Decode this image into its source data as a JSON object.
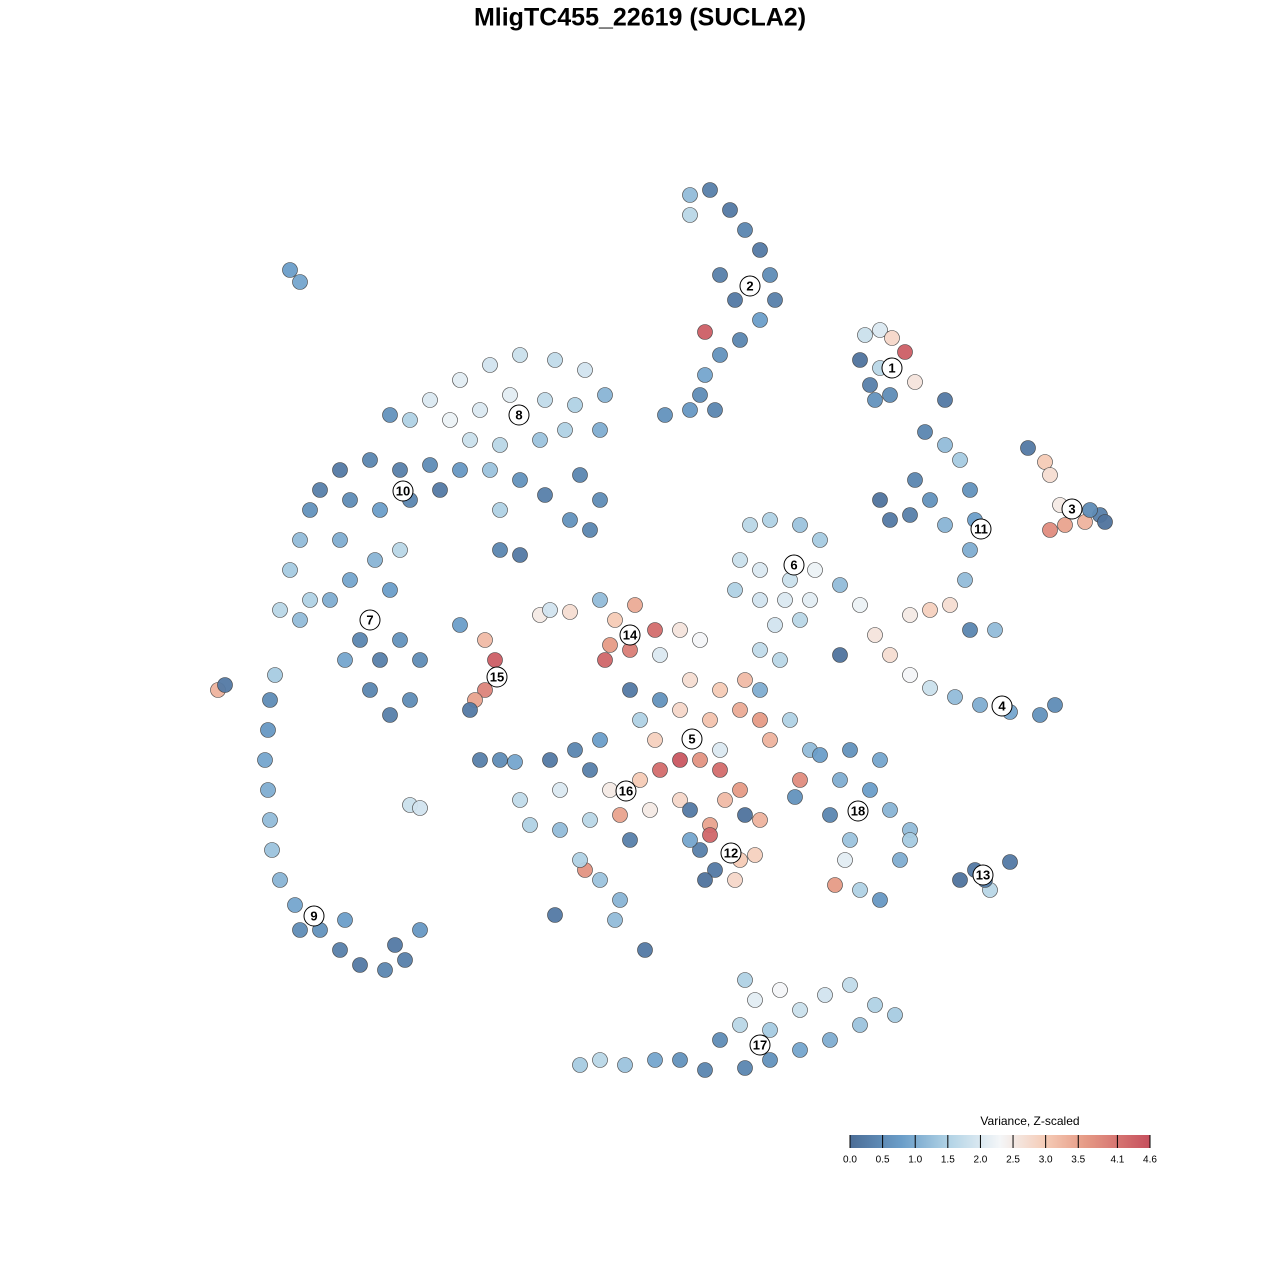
{
  "chart_data": {
    "type": "scatter",
    "title": "MligTC455_22619 (SUCLA2)",
    "xlim": [
      -45,
      50
    ],
    "ylim": [
      -46,
      47
    ],
    "x": [
      5,
      7,
      9,
      10.5,
      12,
      13,
      13.5,
      12,
      10,
      8,
      6.5,
      6,
      5,
      2.5,
      7.5,
      6.5,
      5,
      8,
      9.5,
      22.5,
      24,
      25.2,
      26.5,
      22,
      23,
      25,
      27.5,
      23.5,
      30.5,
      24,
      38.8,
      40.5,
      41,
      42,
      41,
      42.5,
      44.5,
      46,
      46.5,
      45,
      28.5,
      30.5,
      32,
      33,
      33.5,
      33,
      32.5,
      31,
      29,
      27,
      24,
      25,
      27,
      29,
      30.5,
      33,
      35.5,
      27.5,
      22,
      23.5,
      25,
      27,
      29,
      31.5,
      34,
      37,
      40,
      41.5,
      20,
      11,
      13,
      16,
      18,
      10,
      12,
      15,
      17.5,
      9.5,
      12,
      14.5,
      17,
      20,
      13.5,
      16,
      12,
      14,
      -21,
      -18,
      -15,
      -12,
      -8.5,
      -5.5,
      -3.5,
      -19,
      -16,
      -13,
      -9.5,
      -6.5,
      -4,
      -17,
      -14,
      -10,
      -7.5,
      -23,
      -25,
      -30,
      -27,
      -24,
      -21,
      -18,
      -15,
      -12,
      -9.5,
      -6,
      -4,
      -5,
      -7,
      -32,
      -33,
      -29,
      -26,
      -23,
      -20,
      -14,
      -14,
      -12,
      -34,
      -35,
      -36,
      -34,
      -31,
      -29,
      -26.5,
      -24,
      -25,
      -30,
      -28,
      -26,
      -24,
      -22,
      -27,
      -25,
      -23,
      -29.5,
      -33,
      -36.5,
      -37,
      -37.2,
      -37.5,
      -37.2,
      -37,
      -36.8,
      -36,
      -34.5,
      -32,
      -30,
      -28,
      -25.5,
      -23.5,
      -22,
      -29.5,
      -34,
      -24.5,
      -18,
      -15.5,
      -14.5,
      -15.5,
      -16.5,
      -17,
      -10,
      -7,
      -4,
      -2.5,
      -0.5,
      1.5,
      -3,
      -1,
      -3.5,
      4,
      6,
      2,
      -9,
      5,
      8,
      10.5,
      2,
      4,
      7,
      10,
      12,
      13,
      8,
      6,
      4,
      8,
      0,
      -1,
      1.5,
      12,
      15,
      17,
      16,
      15.5,
      -9,
      -6.5,
      -4,
      -5,
      -3,
      0,
      2,
      -8,
      -12,
      -11,
      -8,
      -5,
      -2,
      1,
      -1,
      4,
      -5.5,
      -4,
      -8.5,
      -2,
      -2.5,
      0.5,
      -6,
      5,
      7,
      8.5,
      10.5,
      12,
      6,
      7.5,
      10,
      11.5,
      9.5,
      6.5,
      7,
      5,
      10,
      18,
      21,
      24,
      20,
      23,
      19,
      25,
      27,
      26,
      21,
      20.5,
      19.5,
      22,
      24,
      27,
      32,
      33.5,
      35,
      37,
      34.5,
      -6,
      -4,
      -1.5,
      1.5,
      4,
      6.5,
      8,
      10,
      11.5,
      13,
      16,
      18.5,
      21,
      23.5,
      25.5,
      19,
      16,
      13,
      10.5,
      14,
      22,
      10.5,
      -35,
      -34,
      -42.2,
      -41.5,
      -23,
      -22,
      -16,
      -14,
      -12.5
    ],
    "y": [
      44.5,
      45,
      43,
      41,
      39,
      36.5,
      34,
      32,
      30,
      28.5,
      26.5,
      24.5,
      23,
      22.5,
      23,
      30.8,
      42.5,
      36.5,
      34,
      30.5,
      31,
      30.2,
      28.8,
      28,
      25.5,
      24.5,
      25.8,
      24,
      24,
      27.2,
      19.2,
      17.8,
      16.5,
      13.5,
      11,
      11.5,
      11.8,
      12.5,
      11.8,
      13,
      20.8,
      19.5,
      18,
      15,
      12,
      9,
      6,
      3.5,
      3,
      2.5,
      14,
      12,
      12.5,
      14,
      11.5,
      1,
      1,
      16,
      3.5,
      0.5,
      -1.5,
      -3.5,
      -4.8,
      -5.7,
      -6.5,
      -7.2,
      -7.5,
      -6.5,
      -1.5,
      11.5,
      12,
      11.5,
      10,
      8,
      7,
      6,
      7,
      5,
      4,
      4,
      4,
      5.5,
      1.5,
      2,
      -1,
      -2,
      24,
      26,
      27.5,
      28.5,
      28,
      27,
      24.5,
      22,
      23,
      24.5,
      24,
      23.5,
      21,
      20,
      19.5,
      20,
      21,
      22,
      22.5,
      17,
      18,
      17,
      17.5,
      17,
      17,
      16,
      14.5,
      16.5,
      14,
      11,
      12,
      15,
      13,
      14,
      13,
      14,
      15,
      13,
      9,
      8.5,
      10,
      7,
      3,
      2,
      4,
      6,
      8,
      9,
      5,
      10,
      0,
      -2,
      0,
      -2,
      -5,
      -7.5,
      -6,
      -2,
      4,
      -3.5,
      -6,
      -9,
      -12,
      -15,
      -18,
      -21,
      -24,
      -26.5,
      -29,
      -31,
      -32.5,
      -33,
      -32,
      -29,
      -28,
      -29,
      -30.5,
      1.5,
      0,
      -2,
      -5,
      -6,
      -7,
      2.5,
      2.8,
      4,
      2,
      3.5,
      1,
      -0.5,
      -1,
      -2,
      1,
      0,
      -1.5,
      3,
      -4,
      -5,
      -4,
      -6,
      -7,
      -8,
      -7,
      -8,
      -10,
      -11,
      -12,
      -12,
      -13,
      -8,
      -5,
      -10,
      -5,
      -8,
      -11,
      -14,
      -15.7,
      -12,
      -11,
      -10,
      -13,
      -15,
      -14,
      -13,
      -15,
      -16,
      -18.5,
      -19,
      -18,
      -17.5,
      -17,
      -20,
      -16,
      -23,
      -24,
      -27.5,
      -26,
      -28,
      -31,
      -22,
      -17,
      -18.5,
      -16,
      -17.5,
      -18,
      -21,
      -23,
      -22,
      -21.5,
      -24,
      -24,
      -19.5,
      -20,
      -15,
      -11.5,
      -11,
      -12,
      -14,
      -15,
      -17.5,
      -17,
      -19,
      -22,
      -20,
      -22,
      -24.5,
      -25,
      -26,
      -20,
      -24,
      -23,
      -25,
      -22.2,
      -24,
      -42.5,
      -42,
      -42.5,
      -42,
      -42,
      -43,
      -40,
      -38.5,
      -36,
      -39,
      -37,
      -35.5,
      -34.5,
      -36.5,
      -37.5,
      -40,
      -41,
      -42,
      -42.8,
      -35,
      -38.5,
      -34,
      37,
      35.8,
      -5,
      -4.5,
      -16.5,
      -16.8,
      -12,
      -12,
      -12.2
    ],
    "values": [
      1.2,
      0.3,
      0.2,
      0.4,
      0.2,
      0.5,
      0.3,
      0.8,
      0.4,
      0.6,
      0.9,
      0.5,
      0.7,
      0.6,
      0.4,
      4.4,
      1.6,
      0.3,
      0.2,
      1.8,
      2.0,
      2.8,
      4.4,
      0.1,
      0.3,
      0.5,
      2.6,
      0.6,
      0.2,
      1.6,
      0.2,
      3.0,
      2.7,
      2.5,
      3.8,
      3.5,
      3.3,
      0.3,
      0.1,
      0.5,
      0.4,
      1.2,
      1.4,
      0.6,
      0.8,
      1.0,
      1.2,
      2.7,
      2.9,
      2.5,
      0.1,
      0.2,
      0.3,
      0.6,
      1.1,
      0.4,
      1.2,
      0.4,
      2.2,
      2.6,
      2.7,
      2.3,
      1.8,
      1.2,
      1.0,
      0.9,
      0.6,
      0.5,
      0.1,
      1.6,
      1.5,
      1.3,
      1.4,
      1.8,
      2.0,
      1.8,
      2.2,
      1.5,
      1.9,
      2.0,
      2.1,
      1.2,
      1.9,
      1.6,
      1.7,
      1.6,
      2.0,
      2.1,
      1.9,
      1.8,
      1.7,
      1.9,
      1.1,
      2.2,
      2.0,
      2.1,
      1.7,
      1.5,
      1.0,
      1.8,
      1.6,
      1.3,
      1.5,
      1.5,
      0.6,
      0.2,
      0.4,
      0.3,
      0.5,
      0.7,
      1.3,
      0.6,
      0.3,
      0.4,
      0.5,
      0.4,
      0.6,
      0.3,
      0.6,
      0.5,
      0.8,
      0.4,
      0.2,
      1.5,
      0.4,
      0.2,
      1.2,
      1.4,
      1.6,
      1.2,
      1.0,
      0.9,
      1.1,
      1.6,
      0.8,
      1.0,
      0.4,
      0.3,
      0.6,
      0.5,
      0.4,
      0.3,
      0.5,
      0.9,
      1.5,
      1.4,
      0.5,
      0.7,
      0.9,
      1.0,
      1.2,
      1.3,
      1.1,
      0.9,
      0.6,
      0.3,
      0.2,
      0.4,
      0.3,
      0.7,
      0.8,
      0.5,
      0.2,
      0.8,
      3.2,
      4.4,
      3.9,
      3.5,
      0.2,
      2.5,
      2.7,
      1.2,
      3.0,
      3.4,
      4.2,
      3.6,
      4.0,
      4.3,
      2.6,
      2.3,
      2.0,
      1.9,
      2.7,
      3.0,
      3.2,
      0.6,
      2.8,
      3.1,
      3.4,
      3.6,
      3.3,
      2.0,
      3.7,
      4.5,
      4.2,
      1.5,
      0.2,
      2.9,
      1.0,
      1.5,
      1.2,
      3.8,
      0.6,
      0.2,
      0.4,
      0.8,
      0.3,
      2.5,
      3.0,
      4.2,
      2.0,
      1.7,
      1.5,
      1.2,
      1.6,
      3.5,
      2.5,
      0.3,
      2.8,
      3.7,
      1.3,
      0.2,
      1.1,
      1.2,
      0.2,
      1.5,
      0.2,
      3.5,
      3.2,
      0.1,
      3.3,
      0.3,
      0.2,
      3.0,
      2.9,
      2.8,
      0.1,
      4.3,
      0.9,
      3.6,
      0.8,
      0.6,
      0.9,
      1.0,
      0.8,
      0.4,
      1.1,
      1.2,
      1.0,
      1.3,
      2.1,
      3.6,
      1.5,
      0.7,
      1.4,
      0.1,
      0.2,
      1.6,
      0.2,
      0.3,
      1.4,
      1.6,
      1.3,
      0.9,
      0.6,
      0.4,
      0.5,
      1.6,
      2.1,
      1.4,
      1.8,
      1.9,
      1.7,
      1.5,
      1.4,
      1.0,
      0.9,
      0.6,
      0.4,
      2.3,
      1.3,
      1.5,
      0.8,
      0.9,
      3.3,
      0.2,
      1.8,
      1.9,
      0.3,
      0.5,
      0.9
    ],
    "clusters": [
      {
        "label": 1,
        "x": 25.2,
        "y": 27.2
      },
      {
        "label": 2,
        "x": 11,
        "y": 35.4
      },
      {
        "label": 3,
        "x": 43.2,
        "y": 13.1
      },
      {
        "label": 4,
        "x": 36.2,
        "y": -6.6
      },
      {
        "label": 5,
        "x": 5.2,
        "y": -9.9
      },
      {
        "label": 6,
        "x": 15.4,
        "y": 7.5
      },
      {
        "label": 7,
        "x": -27,
        "y": 2
      },
      {
        "label": 8,
        "x": -12.1,
        "y": 22.5
      },
      {
        "label": 9,
        "x": -32.6,
        "y": -27.6
      },
      {
        "label": 10,
        "x": -23.7,
        "y": 14.9
      },
      {
        "label": 11,
        "x": 34.1,
        "y": 11.1
      },
      {
        "label": 12,
        "x": 9.1,
        "y": -21.3
      },
      {
        "label": 13,
        "x": 34.3,
        "y": -23.5
      },
      {
        "label": 14,
        "x": -1,
        "y": 0.5
      },
      {
        "label": 15,
        "x": -14.3,
        "y": -3.7
      },
      {
        "label": 16,
        "x": -1.4,
        "y": -15.1
      },
      {
        "label": 17,
        "x": 12,
        "y": -40.5
      },
      {
        "label": 18,
        "x": 21.8,
        "y": -17.1
      }
    ],
    "colorbar_title": "Variance, Z-scaled",
    "clim": [
      0,
      4.6
    ],
    "cticks": [
      {
        "value": 0,
        "label": "0.0"
      },
      0.5,
      {
        "value": 1,
        "label": "1.0"
      },
      1.5,
      {
        "value": 2,
        "label": "2.0"
      },
      2.5,
      {
        "value": 3,
        "label": "3.0"
      },
      3.5,
      4.1,
      4.6
    ],
    "colorscale": [
      [
        0,
        "#4b6d97"
      ],
      [
        0.8,
        "#6b9ec9"
      ],
      [
        1.5,
        "#b0d2e5"
      ],
      [
        2.3,
        "#f4f6f8"
      ],
      [
        3.0,
        "#f5cbb6"
      ],
      [
        3.6,
        "#e69b86"
      ],
      [
        4.6,
        "#c64f5d"
      ]
    ]
  }
}
